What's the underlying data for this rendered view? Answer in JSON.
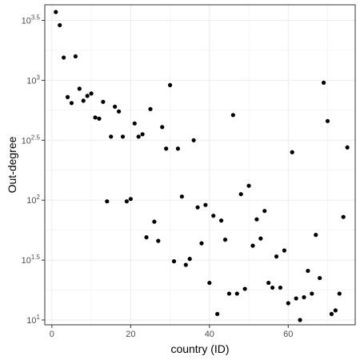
{
  "chart_data": {
    "type": "scatter",
    "xlabel": "country (ID)",
    "ylabel": "Out-degree",
    "log_y": true,
    "xlim": [
      -1.8,
      77
    ],
    "ylog_lim": [
      0.96,
      3.63
    ],
    "grid": true,
    "colors": {
      "point": "#000000",
      "grid": "#ebebeb",
      "panel_border": "#333333"
    },
    "x_ticks": [
      {
        "value": 0,
        "label": "0"
      },
      {
        "value": 20,
        "label": "20"
      },
      {
        "value": 40,
        "label": "40"
      },
      {
        "value": 60,
        "label": "60"
      }
    ],
    "y_ticks": [
      {
        "exp": 1,
        "base": "10",
        "sup": "1"
      },
      {
        "exp": 1.5,
        "base": "10",
        "sup": "1.5"
      },
      {
        "exp": 2,
        "base": "10",
        "sup": "2"
      },
      {
        "exp": 2.5,
        "base": "10",
        "sup": "2.5"
      },
      {
        "exp": 3,
        "base": "10",
        "sup": "3"
      },
      {
        "exp": 3.5,
        "base": "10",
        "sup": "3.5"
      }
    ],
    "points": [
      [
        1,
        3.57
      ],
      [
        2,
        3.46
      ],
      [
        3,
        3.19
      ],
      [
        4,
        2.86
      ],
      [
        5,
        2.81
      ],
      [
        6,
        3.2
      ],
      [
        7,
        2.93
      ],
      [
        8,
        2.83
      ],
      [
        9,
        2.87
      ],
      [
        10,
        2.89
      ],
      [
        11,
        2.69
      ],
      [
        12,
        2.68
      ],
      [
        13,
        2.82
      ],
      [
        14,
        1.99
      ],
      [
        15,
        2.53
      ],
      [
        16,
        2.78
      ],
      [
        17,
        2.74
      ],
      [
        18,
        2.53
      ],
      [
        19,
        1.99
      ],
      [
        20,
        2.01
      ],
      [
        21,
        2.64
      ],
      [
        22,
        2.53
      ],
      [
        23,
        2.55
      ],
      [
        24,
        1.69
      ],
      [
        25,
        2.76
      ],
      [
        26,
        1.82
      ],
      [
        27,
        1.66
      ],
      [
        28,
        2.61
      ],
      [
        29,
        2.43
      ],
      [
        30,
        2.96
      ],
      [
        31,
        1.49
      ],
      [
        32,
        2.43
      ],
      [
        33,
        2.03
      ],
      [
        34,
        1.46
      ],
      [
        35,
        1.51
      ],
      [
        36,
        2.5
      ],
      [
        37,
        1.94
      ],
      [
        38,
        1.64
      ],
      [
        39,
        1.96
      ],
      [
        40,
        1.31
      ],
      [
        41,
        1.87
      ],
      [
        42,
        1.05
      ],
      [
        43,
        1.83
      ],
      [
        44,
        1.67
      ],
      [
        45,
        1.22
      ],
      [
        46,
        2.71
      ],
      [
        47,
        1.22
      ],
      [
        48,
        2.05
      ],
      [
        49,
        1.26
      ],
      [
        50,
        2.12
      ],
      [
        51,
        1.62
      ],
      [
        52,
        1.84
      ],
      [
        53,
        1.68
      ],
      [
        54,
        1.91
      ],
      [
        55,
        1.31
      ],
      [
        56,
        1.27
      ],
      [
        57,
        1.53
      ],
      [
        58,
        1.27
      ],
      [
        59,
        1.58
      ],
      [
        60,
        1.14
      ],
      [
        61,
        2.4
      ],
      [
        62,
        1.18
      ],
      [
        63,
        1.0
      ],
      [
        64,
        1.19
      ],
      [
        65,
        1.41
      ],
      [
        66,
        1.22
      ],
      [
        67,
        1.71
      ],
      [
        68,
        1.35
      ],
      [
        69,
        2.98
      ],
      [
        70,
        2.66
      ],
      [
        71,
        1.05
      ],
      [
        72,
        1.08
      ],
      [
        73,
        1.22
      ],
      [
        74,
        1.86
      ],
      [
        75,
        2.44
      ]
    ]
  }
}
